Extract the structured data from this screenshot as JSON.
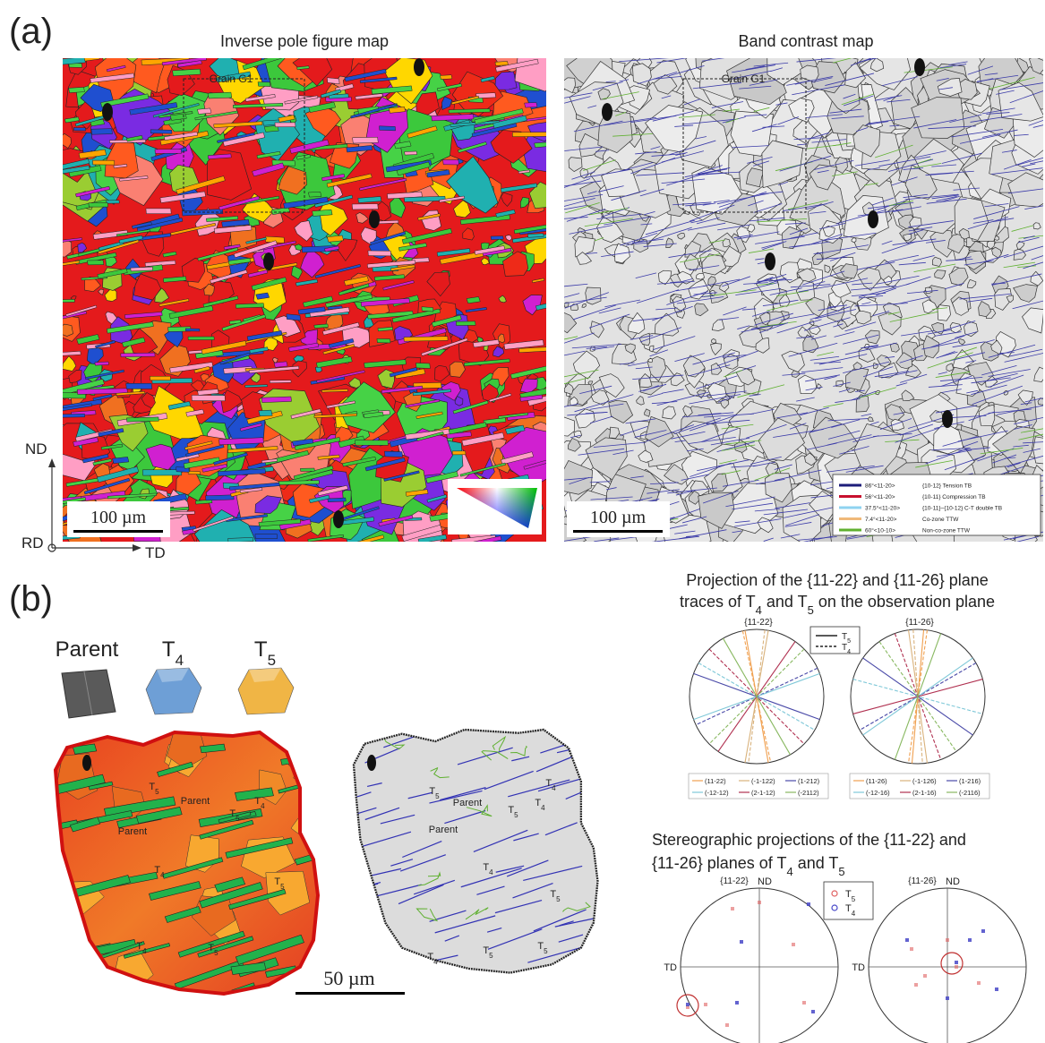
{
  "panel_a": {
    "label": "(a)",
    "ipf_title": "Inverse pole figure map",
    "bc_title": "Band contrast map",
    "grain_label": "Grain G1",
    "scale_bar": "100 µm",
    "axes": {
      "nd": "ND",
      "td": "TD",
      "rd": "RD"
    },
    "bc_legend": [
      {
        "angle": "86°<11-20>",
        "boundary": "{10-12} Tension TB",
        "color": "#1c1c7a"
      },
      {
        "angle": "56°<11-20>",
        "boundary": "{10-11} Compression TB",
        "color": "#c8102e"
      },
      {
        "angle": "37.5°<11-20>",
        "boundary": "{10-11}−{10-12} C-T double TB",
        "color": "#8fd3f0"
      },
      {
        "angle": "7.4°<11-20>",
        "boundary": "Co-zone TTW",
        "color": "#f0b97a"
      },
      {
        "angle": "60°<10-10>",
        "boundary": "Non-co-zone TTW",
        "color": "#5fb030"
      }
    ]
  },
  "panel_b": {
    "label": "(b)",
    "variants": [
      {
        "name": [
          {
            "text": "Parent"
          }
        ],
        "color": "#5a5a5a"
      },
      {
        "name": [
          {
            "text": "T"
          },
          {
            "sub": "4"
          }
        ],
        "color": "#6e9fd6"
      },
      {
        "name": [
          {
            "text": "T"
          },
          {
            "sub": "5"
          }
        ],
        "color": "#f0b545"
      }
    ],
    "scale_bar": "50 µm",
    "ipf_grain_labels": [
      [
        {
          "text": "T"
        },
        {
          "sub": "5"
        }
      ],
      [
        {
          "text": "Parent"
        }
      ],
      [
        {
          "text": "T"
        },
        {
          "sub": "5"
        }
      ],
      [
        {
          "text": "T"
        },
        {
          "sub": "4"
        }
      ],
      [
        {
          "text": "Parent"
        }
      ],
      [
        {
          "text": "T"
        },
        {
          "sub": "4"
        }
      ],
      [
        {
          "text": "T"
        },
        {
          "sub": "5"
        }
      ],
      [
        {
          "text": "T"
        },
        {
          "sub": "4"
        }
      ],
      [
        {
          "text": "T"
        },
        {
          "sub": "5"
        }
      ]
    ],
    "bc_grain_labels": [
      [
        {
          "text": "T"
        },
        {
          "sub": "5"
        }
      ],
      [
        {
          "text": "Parent"
        }
      ],
      [
        {
          "text": "T"
        },
        {
          "sub": "5"
        }
      ],
      [
        {
          "text": "T"
        },
        {
          "sub": "4"
        }
      ],
      [
        {
          "text": "T"
        },
        {
          "sub": "4"
        }
      ],
      [
        {
          "text": "Parent"
        }
      ],
      [
        {
          "text": "T"
        },
        {
          "sub": "4"
        }
      ],
      [
        {
          "text": "T"
        },
        {
          "sub": "5"
        }
      ],
      [
        {
          "text": "T"
        },
        {
          "sub": "5"
        }
      ],
      [
        {
          "text": "T"
        },
        {
          "sub": "4"
        }
      ],
      [
        {
          "text": "T"
        },
        {
          "sub": "5"
        }
      ]
    ],
    "traces": {
      "title": [
        [
          {
            "text": "Projection of the {11-22} and {11-26} plane"
          }
        ],
        [
          {
            "text": "traces of T"
          },
          {
            "sub": "4"
          },
          {
            "text": " and T"
          },
          {
            "sub": "5"
          },
          {
            "text": " on the observation plane"
          }
        ]
      ],
      "key": [
        [
          {
            "text": "T"
          },
          {
            "sub": "5"
          }
        ],
        [
          {
            "text": "T"
          },
          {
            "sub": "4"
          }
        ]
      ],
      "plots": [
        {
          "plane": "{11-22}",
          "legend": [
            {
              "label": "(11-22)",
              "color": "#f0a050"
            },
            {
              "label": "(-1-122)",
              "color": "#d9b27c"
            },
            {
              "label": "(1-212)",
              "color": "#4a4aa8"
            },
            {
              "label": "(-12-12)",
              "color": "#7fc8d8"
            },
            {
              "label": "(2-1-12)",
              "color": "#b03050"
            },
            {
              "label": "(-2112)",
              "color": "#88b860"
            }
          ]
        },
        {
          "plane": "{11-26}",
          "legend": [
            {
              "label": "(11-26)",
              "color": "#f0a050"
            },
            {
              "label": "(-1-126)",
              "color": "#d9b27c"
            },
            {
              "label": "(1-216)",
              "color": "#4a4aa8"
            },
            {
              "label": "(-12-16)",
              "color": "#7fc8d8"
            },
            {
              "label": "(2-1-16)",
              "color": "#b03050"
            },
            {
              "label": "(-2116)",
              "color": "#88b860"
            }
          ]
        }
      ]
    },
    "stereo": {
      "title": [
        [
          {
            "text": "Stereographic projections of the {11-22} and"
          }
        ],
        [
          {
            "text": "{11-26} planes of T"
          },
          {
            "sub": "4"
          },
          {
            "text": " and T"
          },
          {
            "sub": "5"
          }
        ]
      ],
      "key": [
        {
          "name": [
            {
              "text": "T"
            },
            {
              "sub": "5"
            }
          ],
          "color": "#e06060"
        },
        {
          "name": [
            {
              "text": "T"
            },
            {
              "sub": "4"
            }
          ],
          "color": "#4848c8"
        }
      ],
      "plots": [
        {
          "plane": "{11-22}",
          "nd": "ND",
          "td": "TD"
        },
        {
          "plane": "{11-26}",
          "nd": "ND",
          "td": "TD"
        }
      ]
    }
  }
}
